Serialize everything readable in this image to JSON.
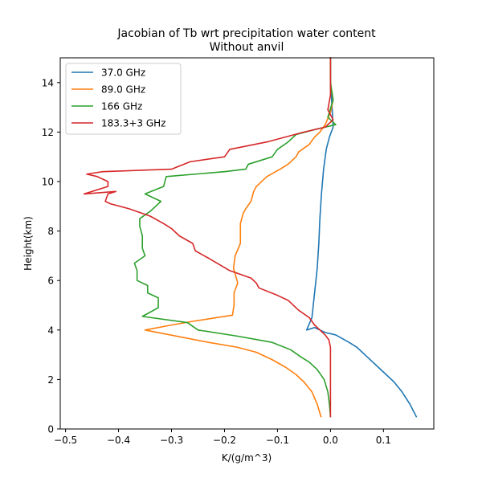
{
  "chart_data": {
    "type": "line",
    "title": "Jacobian of Tb wrt precipitation water content",
    "subtitle": "Without anvil",
    "xlabel": "K/(g/m^3)",
    "ylabel": "Height(km)",
    "xlim": [
      -0.51,
      0.195
    ],
    "ylim": [
      0,
      15
    ],
    "xticks": [
      -0.5,
      -0.4,
      -0.3,
      -0.2,
      -0.1,
      0.0,
      0.1
    ],
    "xtick_labels": [
      "−0.5",
      "−0.4",
      "−0.3",
      "−0.2",
      "−0.1",
      "0.0",
      "0.1"
    ],
    "yticks": [
      0,
      2,
      4,
      6,
      8,
      10,
      12,
      14
    ],
    "ytick_labels": [
      "0",
      "2",
      "4",
      "6",
      "8",
      "10",
      "12",
      "14"
    ],
    "grid": false,
    "legend_position": "top-left",
    "series": [
      {
        "name": "37.0 GHz",
        "color": "#1f77b4",
        "points": [
          [
            0.162,
            0.5
          ],
          [
            0.15,
            1.0
          ],
          [
            0.135,
            1.5
          ],
          [
            0.12,
            1.9
          ],
          [
            0.105,
            2.2
          ],
          [
            0.09,
            2.5
          ],
          [
            0.07,
            2.9
          ],
          [
            0.05,
            3.3
          ],
          [
            0.035,
            3.5
          ],
          [
            0.01,
            3.8
          ],
          [
            -0.01,
            3.9
          ],
          [
            -0.02,
            4.0
          ],
          [
            -0.03,
            4.1
          ],
          [
            -0.045,
            4.0
          ],
          [
            -0.035,
            4.5
          ],
          [
            -0.03,
            5.5
          ],
          [
            -0.025,
            6.5
          ],
          [
            -0.022,
            7.5
          ],
          [
            -0.02,
            8.5
          ],
          [
            -0.017,
            9.5
          ],
          [
            -0.013,
            10.5
          ],
          [
            -0.008,
            11.3
          ],
          [
            -0.002,
            11.8
          ],
          [
            0.005,
            12.2
          ],
          [
            0.003,
            13.0
          ],
          [
            0.0,
            14.0
          ],
          [
            0.0,
            15.0
          ]
        ]
      },
      {
        "name": "89.0 GHz",
        "color": "#ff7f0e",
        "points": [
          [
            -0.018,
            0.5
          ],
          [
            -0.025,
            1.0
          ],
          [
            -0.035,
            1.5
          ],
          [
            -0.05,
            1.9
          ],
          [
            -0.065,
            2.2
          ],
          [
            -0.085,
            2.5
          ],
          [
            -0.11,
            2.8
          ],
          [
            -0.14,
            3.1
          ],
          [
            -0.175,
            3.3
          ],
          [
            -0.23,
            3.5
          ],
          [
            -0.35,
            4.0
          ],
          [
            -0.3,
            4.2
          ],
          [
            -0.26,
            4.35
          ],
          [
            -0.185,
            4.6
          ],
          [
            -0.182,
            5.0
          ],
          [
            -0.182,
            5.5
          ],
          [
            -0.175,
            5.9
          ],
          [
            -0.183,
            6.5
          ],
          [
            -0.18,
            7.0
          ],
          [
            -0.17,
            7.5
          ],
          [
            -0.17,
            8.3
          ],
          [
            -0.165,
            8.7
          ],
          [
            -0.16,
            8.9
          ],
          [
            -0.15,
            9.2
          ],
          [
            -0.145,
            9.6
          ],
          [
            -0.14,
            9.8
          ],
          [
            -0.12,
            10.2
          ],
          [
            -0.095,
            10.5
          ],
          [
            -0.08,
            10.7
          ],
          [
            -0.065,
            11.0
          ],
          [
            -0.06,
            11.2
          ],
          [
            -0.04,
            11.5
          ],
          [
            -0.03,
            11.8
          ],
          [
            -0.02,
            12.0
          ],
          [
            -0.01,
            12.3
          ],
          [
            0.0,
            12.8
          ],
          [
            0.005,
            13.3
          ],
          [
            0.0,
            14.0
          ],
          [
            0.0,
            15.0
          ]
        ]
      },
      {
        "name": "166 GHz",
        "color": "#2ca02c",
        "points": [
          [
            0.0,
            0.5
          ],
          [
            -0.002,
            1.0
          ],
          [
            -0.005,
            1.5
          ],
          [
            -0.012,
            2.0
          ],
          [
            -0.025,
            2.4
          ],
          [
            -0.04,
            2.7
          ],
          [
            -0.055,
            2.9
          ],
          [
            -0.075,
            3.2
          ],
          [
            -0.11,
            3.5
          ],
          [
            -0.175,
            3.75
          ],
          [
            -0.25,
            4.0
          ],
          [
            -0.27,
            4.3
          ],
          [
            -0.355,
            4.55
          ],
          [
            -0.325,
            4.9
          ],
          [
            -0.325,
            5.3
          ],
          [
            -0.345,
            5.5
          ],
          [
            -0.345,
            5.8
          ],
          [
            -0.365,
            6.0
          ],
          [
            -0.365,
            6.4
          ],
          [
            -0.37,
            6.7
          ],
          [
            -0.35,
            7.0
          ],
          [
            -0.355,
            7.3
          ],
          [
            -0.355,
            7.8
          ],
          [
            -0.36,
            8.2
          ],
          [
            -0.36,
            8.5
          ],
          [
            -0.34,
            8.8
          ],
          [
            -0.32,
            9.2
          ],
          [
            -0.35,
            9.5
          ],
          [
            -0.315,
            9.8
          ],
          [
            -0.31,
            10.2
          ],
          [
            -0.2,
            10.4
          ],
          [
            -0.16,
            10.5
          ],
          [
            -0.155,
            10.7
          ],
          [
            -0.11,
            11.0
          ],
          [
            -0.1,
            11.3
          ],
          [
            -0.08,
            11.6
          ],
          [
            -0.065,
            11.9
          ],
          [
            -0.03,
            12.1
          ],
          [
            -0.01,
            12.2
          ],
          [
            0.01,
            12.3
          ],
          [
            -0.005,
            12.6
          ],
          [
            0.005,
            13.3
          ],
          [
            0.0,
            14.0
          ],
          [
            0.0,
            15.0
          ]
        ]
      },
      {
        "name": "183.3+3 GHz",
        "color": "#d62728",
        "points": [
          [
            0.0,
            0.5
          ],
          [
            0.0,
            1.5
          ],
          [
            0.0,
            2.5
          ],
          [
            0.0,
            3.0
          ],
          [
            0.0,
            3.3
          ],
          [
            -0.003,
            3.6
          ],
          [
            -0.01,
            3.8
          ],
          [
            -0.03,
            4.2
          ],
          [
            -0.04,
            4.5
          ],
          [
            -0.06,
            4.8
          ],
          [
            -0.08,
            5.2
          ],
          [
            -0.1,
            5.4
          ],
          [
            -0.135,
            5.7
          ],
          [
            -0.14,
            5.9
          ],
          [
            -0.15,
            6.1
          ],
          [
            -0.19,
            6.4
          ],
          [
            -0.23,
            6.9
          ],
          [
            -0.255,
            7.2
          ],
          [
            -0.26,
            7.5
          ],
          [
            -0.285,
            7.8
          ],
          [
            -0.3,
            8.1
          ],
          [
            -0.315,
            8.3
          ],
          [
            -0.34,
            8.6
          ],
          [
            -0.38,
            8.9
          ],
          [
            -0.415,
            9.1
          ],
          [
            -0.425,
            9.2
          ],
          [
            -0.42,
            9.5
          ],
          [
            -0.405,
            9.6
          ],
          [
            -0.465,
            9.5
          ],
          [
            -0.42,
            9.8
          ],
          [
            -0.42,
            10.0
          ],
          [
            -0.44,
            10.2
          ],
          [
            -0.46,
            10.3
          ],
          [
            -0.43,
            10.4
          ],
          [
            -0.3,
            10.5
          ],
          [
            -0.265,
            10.8
          ],
          [
            -0.2,
            11.0
          ],
          [
            -0.19,
            11.3
          ],
          [
            -0.12,
            11.6
          ],
          [
            -0.05,
            12.0
          ],
          [
            -0.01,
            12.2
          ],
          [
            0.005,
            12.5
          ],
          [
            -0.005,
            12.9
          ],
          [
            0.0,
            13.5
          ],
          [
            0.0,
            14.0
          ],
          [
            0.0,
            15.0
          ]
        ]
      }
    ]
  }
}
